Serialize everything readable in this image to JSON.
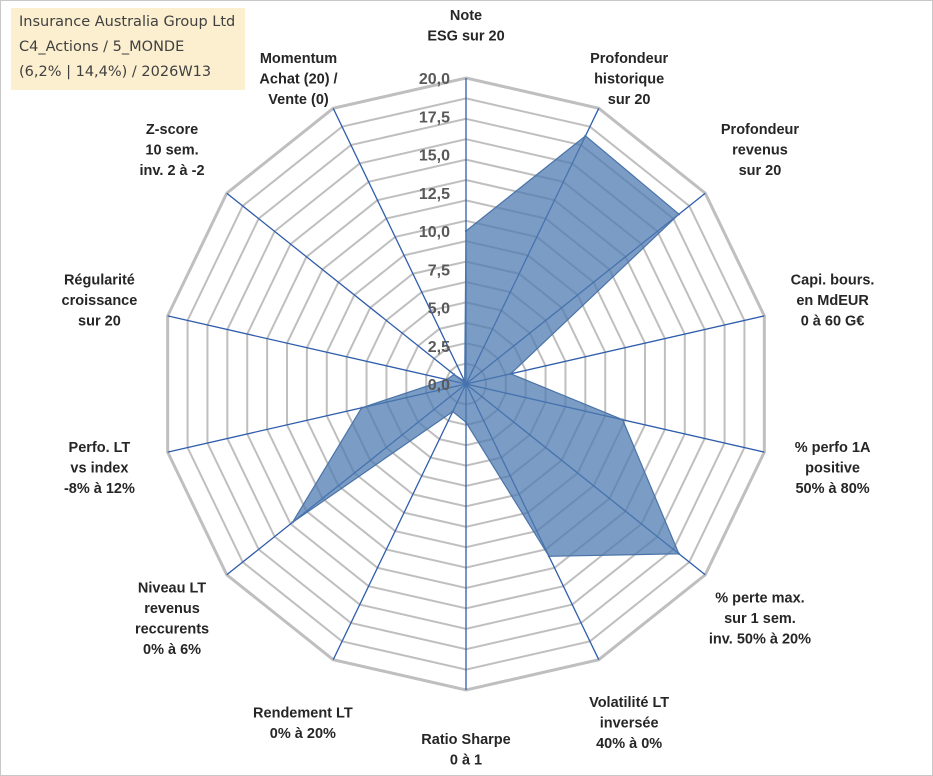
{
  "title_box": {
    "line1": "Insurance Australia Group Ltd",
    "line2": "C4_Actions / 5_MONDE",
    "line3": "(6,2% | 14,4%) / 2026W13"
  },
  "chart_data": {
    "type": "radar",
    "title": "",
    "rmin": 0,
    "rmax": 20,
    "ticks": [
      "0,0",
      "2,5",
      "5,0",
      "7,5",
      "10,0",
      "12,5",
      "15,0",
      "17,5",
      "20,0"
    ],
    "tick_values": [
      0,
      2.5,
      5,
      7.5,
      10,
      12.5,
      15,
      17.5,
      20
    ],
    "grid": true,
    "legend": "none",
    "axes": [
      {
        "lines": [
          "Note",
          "ESG sur 20"
        ]
      },
      {
        "lines": [
          "Profondeur",
          "historique",
          "sur 20"
        ]
      },
      {
        "lines": [
          "Profondeur",
          "revenus",
          "sur 20"
        ]
      },
      {
        "lines": [
          "Capi. bours.",
          "en MdEUR",
          "0 à 60 G€"
        ]
      },
      {
        "lines": [
          "% perfo 1A",
          "positive",
          "50% à 80%"
        ]
      },
      {
        "lines": [
          "% perte max.",
          "sur 1 sem.",
          "inv. 50% à 20%"
        ]
      },
      {
        "lines": [
          "Volatilité LT",
          "inversée",
          "40% à 0%"
        ]
      },
      {
        "lines": [
          "Ratio Sharpe",
          "0 à 1"
        ]
      },
      {
        "lines": [
          "Rendement LT",
          "0% à 20%"
        ]
      },
      {
        "lines": [
          "Niveau LT",
          "revenus",
          "reccurents",
          "0% à 6%"
        ]
      },
      {
        "lines": [
          "Perfo. LT",
          "vs index",
          "-8% à 12%"
        ]
      },
      {
        "lines": [
          "Régularité",
          "croissance",
          "sur 20"
        ]
      },
      {
        "lines": [
          "Z-score",
          "10 sem.",
          "inv. 2 à -2"
        ]
      },
      {
        "lines": [
          "Momentum",
          "Achat (20) /",
          "Vente (0)"
        ]
      }
    ],
    "series": [
      {
        "values": [
          10.0,
          18.0,
          17.8,
          3.0,
          10.5,
          17.8,
          12.5,
          2.5,
          2.0,
          14.5,
          7.0,
          1.3,
          1.0,
          0.2
        ]
      }
    ],
    "colors": {
      "fill": "#4f7bb0",
      "fill_opacity": 0.75,
      "stroke": "#4a73a8",
      "grid": "#bfbfbf",
      "axis": "#2f5dab"
    }
  }
}
